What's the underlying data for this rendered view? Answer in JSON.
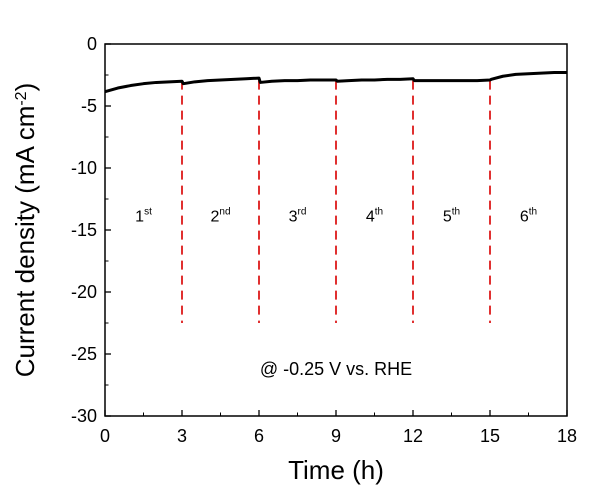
{
  "chart_data": {
    "type": "line",
    "xlabel": "Time (h)",
    "ylabel_main": "Current density (mA cm",
    "ylabel_sup": "-2",
    "ylabel_close": ")",
    "xlim": [
      0,
      18
    ],
    "ylim": [
      -30,
      0
    ],
    "x_ticks": [
      0,
      3,
      6,
      9,
      12,
      15,
      18
    ],
    "y_ticks": [
      0,
      -5,
      -10,
      -15,
      -20,
      -25,
      -30
    ],
    "series_color": "#000000",
    "divider_color": "#e03030",
    "annotation": "@ -0.25 V vs. RHE",
    "series": [
      {
        "x": [
          0,
          0.5,
          1,
          1.5,
          2,
          2.5,
          3.0,
          3.05,
          3.5,
          4,
          4.5,
          5,
          5.5,
          6.0,
          6.05,
          6.5,
          7,
          7.5,
          8,
          8.5,
          9.0,
          9.05,
          9.5,
          10,
          10.5,
          11,
          11.5,
          12.0,
          12.05,
          12.5,
          13,
          13.5,
          14,
          14.5,
          15.0,
          15.05,
          15.5,
          16,
          16.5,
          17,
          17.5,
          18
        ],
        "y": [
          -3.85,
          -3.55,
          -3.35,
          -3.2,
          -3.1,
          -3.05,
          -3.0,
          -3.2,
          -3.05,
          -2.95,
          -2.9,
          -2.85,
          -2.8,
          -2.75,
          -3.1,
          -3.0,
          -2.95,
          -2.95,
          -2.9,
          -2.9,
          -2.9,
          -3.0,
          -2.95,
          -2.9,
          -2.9,
          -2.85,
          -2.85,
          -2.8,
          -2.95,
          -2.95,
          -2.95,
          -2.95,
          -2.95,
          -2.95,
          -2.9,
          -2.85,
          -2.6,
          -2.45,
          -2.4,
          -2.35,
          -2.3,
          -2.3
        ]
      }
    ],
    "dividers": [
      3,
      6,
      9,
      12,
      15
    ],
    "divider_bottom": -22.5,
    "cycles": [
      {
        "x": 1.5,
        "num": "1",
        "sup": "st"
      },
      {
        "x": 4.5,
        "num": "2",
        "sup": "nd"
      },
      {
        "x": 7.5,
        "num": "3",
        "sup": "rd"
      },
      {
        "x": 10.5,
        "num": "4",
        "sup": "th"
      },
      {
        "x": 13.5,
        "num": "5",
        "sup": "th"
      },
      {
        "x": 16.5,
        "num": "6",
        "sup": "th"
      }
    ],
    "cycle_label_y": -14.3,
    "annotation_pos": {
      "x": 9,
      "y": -26.7
    }
  }
}
